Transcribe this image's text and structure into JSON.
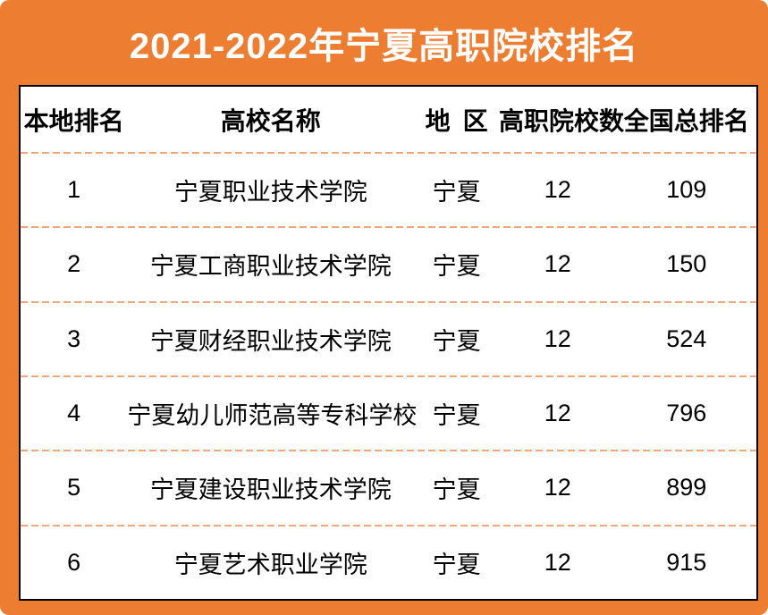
{
  "title": "2021-2022年宁夏高职院校排名",
  "chart_data": {
    "type": "table",
    "title": "2021-2022年宁夏高职院校排名",
    "columns": [
      "本地排名",
      "高校名称",
      "地 区",
      "高职院校数",
      "全国总排名"
    ],
    "rows": [
      [
        "1",
        "宁夏职业技术学院",
        "宁夏",
        "12",
        "109"
      ],
      [
        "2",
        "宁夏工商职业技术学院",
        "宁夏",
        "12",
        "150"
      ],
      [
        "3",
        "宁夏财经职业技术学院",
        "宁夏",
        "12",
        "524"
      ],
      [
        "4",
        "宁夏幼儿师范高等专科学校",
        "宁夏",
        "12",
        "796"
      ],
      [
        "5",
        "宁夏建设职业技术学院",
        "宁夏",
        "12",
        "899"
      ],
      [
        "6",
        "宁夏艺术职业学院",
        "宁夏",
        "12",
        "915"
      ]
    ]
  },
  "colors": {
    "accent": "#ED7D31",
    "dash": "#F0A878",
    "table_border": "#000000",
    "table_bg": "#FFFFFF",
    "title_text": "#FFFFFF",
    "body_text": "#000000"
  }
}
